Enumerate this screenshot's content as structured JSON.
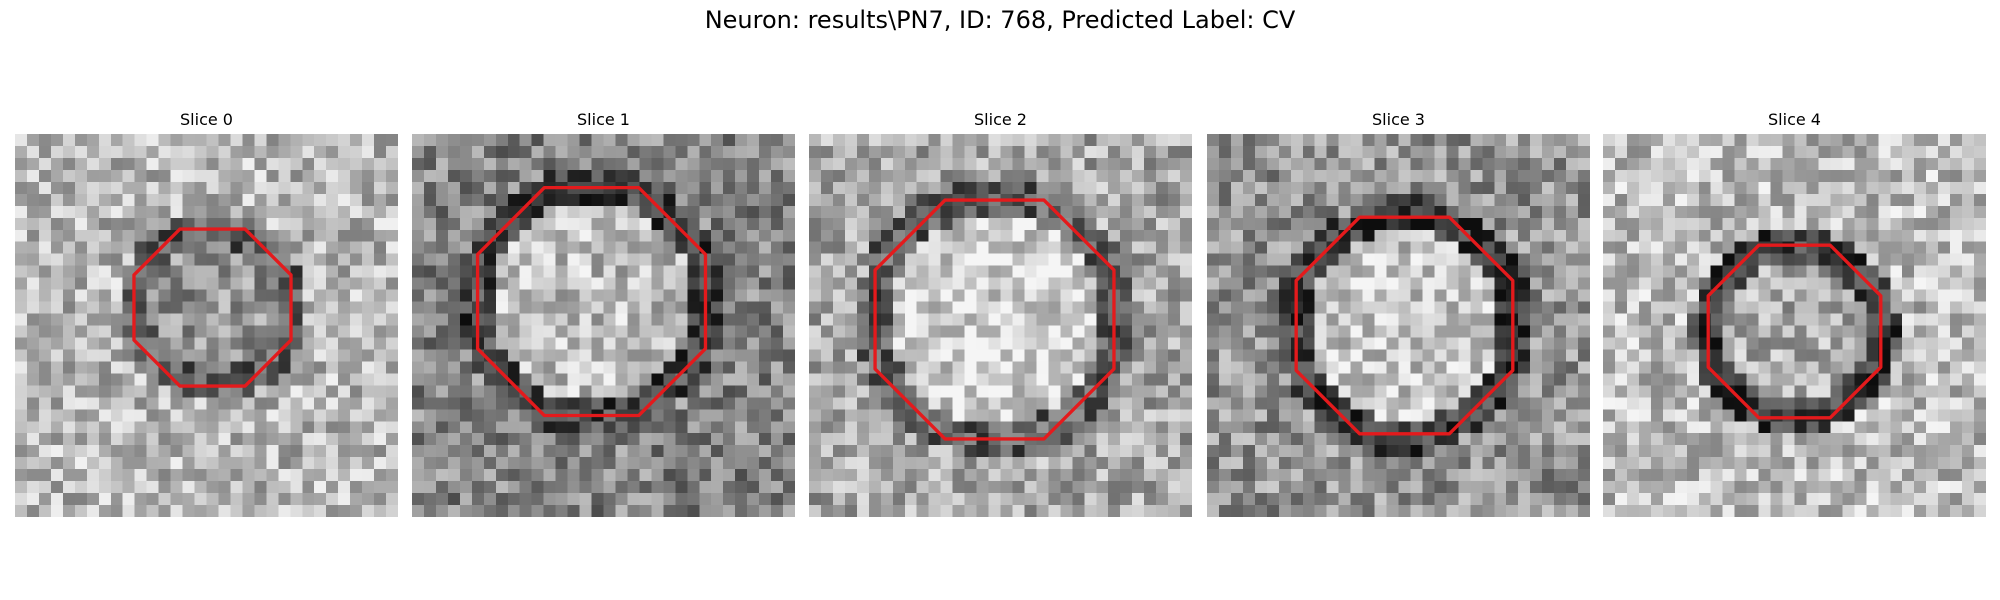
{
  "figure": {
    "title": "Neuron: results\\PN7, ID: 768, Predicted Label: CV"
  },
  "colors": {
    "contour": "#e41a1c",
    "background": "#ffffff"
  },
  "panels": [
    {
      "title": "Slice 0",
      "image": "grayscale-microscopy-slice",
      "contour_color": "red"
    },
    {
      "title": "Slice 1",
      "image": "grayscale-microscopy-slice",
      "contour_color": "red"
    },
    {
      "title": "Slice 2",
      "image": "grayscale-microscopy-slice",
      "contour_color": "red"
    },
    {
      "title": "Slice 3",
      "image": "grayscale-microscopy-slice",
      "contour_color": "red"
    },
    {
      "title": "Slice 4",
      "image": "grayscale-microscopy-slice",
      "contour_color": "red"
    }
  ]
}
